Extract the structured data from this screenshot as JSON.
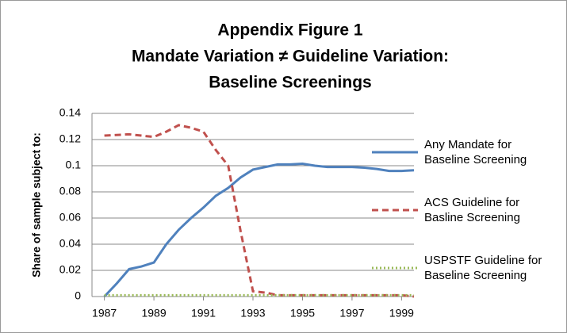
{
  "chart_data": {
    "type": "line",
    "title": [
      "Appendix Figure 1",
      "Mandate Variation ≠ Guideline Variation:",
      "Baseline Screenings"
    ],
    "y_label": "Share of sample subject to:",
    "x": [
      1987,
      1987.5,
      1988,
      1988.5,
      1989,
      1989.5,
      1990,
      1990.5,
      1991,
      1991.5,
      1992,
      1992.5,
      1993,
      1993.5,
      1994,
      1994.5,
      1995,
      1995.5,
      1996,
      1996.5,
      1997,
      1997.5,
      1998,
      1998.5,
      1999,
      1999.5
    ],
    "series": [
      {
        "name": "Any Mandate for Baseline Screening",
        "color": "#4f81bd",
        "dash": "solid",
        "values": [
          0,
          0.01,
          0.021,
          0.023,
          0.026,
          0.04,
          0.051,
          0.06,
          0.068,
          0.077,
          0.083,
          0.091,
          0.097,
          0.099,
          0.101,
          0.101,
          0.1015,
          0.1,
          0.099,
          0.099,
          0.099,
          0.0985,
          0.0975,
          0.096,
          0.096,
          0.0965
        ]
      },
      {
        "name": "ACS Guideline for Basline Screening",
        "color": "#c0504d",
        "dash": "dashed",
        "values": [
          0.123,
          0.1235,
          0.124,
          0.123,
          0.122,
          0.126,
          0.131,
          0.129,
          0.126,
          0.112,
          0.1,
          0.05,
          0.004,
          0.003,
          0.001,
          0.001,
          0.001,
          0.001,
          0.001,
          0.001,
          0.001,
          0.001,
          0.001,
          0.001,
          0.001,
          0
        ]
      },
      {
        "name": "USPSTF Guideline for Baseline Screening",
        "color": "#9bbb59",
        "dash": "dotted",
        "values": [
          0.001,
          0.001,
          0.001,
          0.001,
          0.001,
          0.001,
          0.001,
          0.001,
          0.001,
          0.001,
          0.001,
          0.001,
          0.001,
          0.001,
          0.001,
          0.001,
          0.001,
          0.001,
          0.001,
          0.001,
          0.001,
          0.001,
          0.001,
          0.001,
          0.001,
          0.001
        ]
      }
    ],
    "xlim": [
      1986.5,
      1999.5
    ],
    "xticks": [
      1987,
      1989,
      1991,
      1993,
      1995,
      1997,
      1999
    ],
    "ylim": [
      0,
      0.14
    ],
    "yticks": [
      0,
      0.02,
      0.04,
      0.06,
      0.08,
      0.1,
      0.12,
      0.14
    ],
    "grid": true,
    "legend": "right"
  }
}
